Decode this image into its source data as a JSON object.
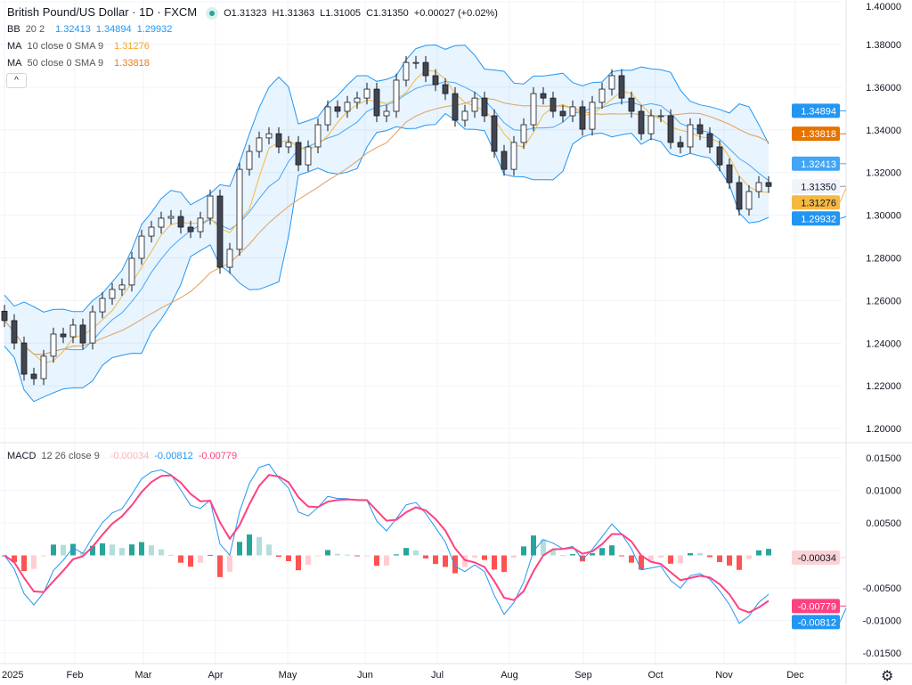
{
  "header": {
    "title": "British Pound/US Dollar · 1D · FXCM",
    "status_icon": "market-open-dot-icon",
    "ohlc": {
      "open": "O1.31323",
      "high": "H1.31363",
      "low": "L1.31005",
      "close": "C1.31350",
      "change": "+0.00027 (+0.02%)"
    }
  },
  "indicators": {
    "bb": {
      "label": "BB",
      "params": "20 2",
      "values": [
        "1.32413",
        "1.34894",
        "1.29932"
      ],
      "color": "#2196f3"
    },
    "ma10": {
      "label": "MA",
      "params": "10 close 0 SMA 9",
      "value": "1.31276",
      "color": "#f5b942"
    },
    "ma50": {
      "label": "MA",
      "params": "50 close 0 SMA 9",
      "value": "1.33818",
      "color": "#e67e22"
    },
    "macd": {
      "label": "MACD",
      "params": "12 26 close 9",
      "values": [
        "-0.00034",
        "-0.00812",
        "-0.00779"
      ],
      "colors": [
        "#f7b6bd",
        "#2196f3",
        "#ff4081"
      ]
    }
  },
  "collapse_label": "^",
  "settings_icon": "gear-icon",
  "chart_data": {
    "type": "candlestick",
    "price_axis": {
      "ticks": [
        "1.40000",
        "1.38000",
        "1.36000",
        "1.34000",
        "1.32000",
        "1.30000",
        "1.28000",
        "1.26000",
        "1.24000",
        "1.22000",
        "1.20000"
      ],
      "range": [
        1.2,
        1.4
      ]
    },
    "macd_axis": {
      "ticks": [
        "0.01500",
        "0.01000",
        "0.00500",
        "-0.00500",
        "-0.01000",
        "-0.01500"
      ],
      "range": [
        -0.015,
        0.015
      ]
    },
    "x_ticks": [
      "2025",
      "Feb",
      "Mar",
      "Apr",
      "May",
      "Jun",
      "Jul",
      "Aug",
      "Sep",
      "Oct",
      "Nov",
      "Dec"
    ],
    "first_open": 1.255,
    "closes": [
      1.2506,
      1.2401,
      1.2255,
      1.2234,
      1.2339,
      1.2443,
      1.243,
      1.2485,
      1.2401,
      1.2547,
      1.261,
      1.2652,
      1.2673,
      1.2798,
      1.2902,
      1.2944,
      1.2986,
      1.2994,
      1.2944,
      1.2923,
      1.2986,
      1.309,
      1.2756,
      1.284,
      1.3215,
      1.3299,
      1.3362,
      1.3382,
      1.332,
      1.3341,
      1.3236,
      1.332,
      1.3424,
      1.3508,
      1.3487,
      1.3529,
      1.3549,
      1.3591,
      1.3466,
      1.3487,
      1.3633,
      1.3716,
      1.3716,
      1.3654,
      1.3612,
      1.357,
      1.3445,
      1.3487,
      1.3549,
      1.3466,
      1.3299,
      1.3215,
      1.3341,
      1.3424,
      1.357,
      1.3549,
      1.3487,
      1.3466,
      1.3508,
      1.3403,
      1.3529,
      1.3591,
      1.3654,
      1.3549,
      1.3487,
      1.3382,
      1.3466,
      1.3466,
      1.3341,
      1.332,
      1.3424,
      1.3382,
      1.332,
      1.3236,
      1.3153,
      1.3028,
      1.3111,
      1.3153,
      1.3135
    ],
    "badges": [
      {
        "value": 1.34894,
        "label": "1.34894",
        "bg": "#2196f3",
        "fg": "#ffffff"
      },
      {
        "value": 1.33818,
        "label": "1.33818",
        "bg": "#e67300",
        "fg": "#ffffff"
      },
      {
        "value": 1.32413,
        "label": "1.32413",
        "bg": "#42a5f5",
        "fg": "#ffffff"
      },
      {
        "value": 1.3135,
        "label": "1.31350",
        "bg": "#f0f3fa",
        "fg": "#131722"
      },
      {
        "value": 1.31276,
        "label": "1.31276",
        "bg": "#f5b942",
        "fg": "#131722"
      },
      {
        "value": 1.29932,
        "label": "1.29932",
        "bg": "#2196f3",
        "fg": "#ffffff"
      }
    ],
    "macd_badges": [
      {
        "value": -0.00034,
        "label": "-0.00034",
        "bg": "#fbd3d7",
        "fg": "#131722"
      },
      {
        "value": -0.00779,
        "label": "-0.00779",
        "bg": "#ff4081",
        "fg": "#ffffff"
      },
      {
        "value": -0.00812,
        "label": "-0.00812",
        "bg": "#2196f3",
        "fg": "#ffffff"
      }
    ]
  }
}
